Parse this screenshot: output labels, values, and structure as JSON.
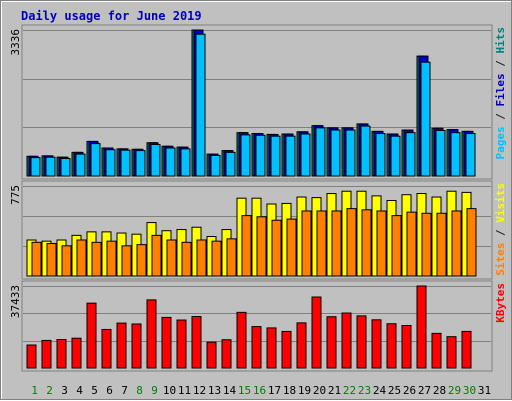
{
  "chart_data": {
    "type": "bar",
    "title": "Daily usage for June 2019",
    "days": [
      "1",
      "2",
      "3",
      "4",
      "5",
      "6",
      "7",
      "8",
      "9",
      "10",
      "11",
      "12",
      "13",
      "14",
      "15",
      "16",
      "17",
      "18",
      "19",
      "20",
      "21",
      "22",
      "23",
      "24",
      "25",
      "26",
      "27",
      "28",
      "29",
      "30",
      "31"
    ],
    "weekend_days": [
      "1",
      "2",
      "8",
      "9",
      "15",
      "16",
      "22",
      "23",
      "29",
      "30"
    ],
    "panels": [
      {
        "id": "hits",
        "ymax_label": "3336",
        "ymax": 3336,
        "right_legend": [
          {
            "text": "Pages",
            "color": "#00c0ff"
          },
          {
            "text": " / ",
            "color": "#202020"
          },
          {
            "text": "Files",
            "color": "#0000c0"
          },
          {
            "text": " / ",
            "color": "#202020"
          },
          {
            "text": "Hits",
            "color": "#008080"
          }
        ],
        "series": [
          {
            "name": "Hits",
            "color": "#008080",
            "values": [
              450,
              460,
              430,
              540,
              790,
              640,
              620,
              610,
              760,
              680,
              660,
              3336,
              500,
              580,
              990,
              970,
              950,
              960,
              1010,
              1150,
              1100,
              1100,
              1190,
              1020,
              960,
              1050,
              2740,
              1090,
              1060,
              1020,
              0
            ]
          },
          {
            "name": "Files",
            "color": "#0000c0",
            "values": [
              450,
              460,
              430,
              540,
              790,
              640,
              620,
              610,
              760,
              680,
              660,
              3336,
              500,
              580,
              990,
              970,
              950,
              960,
              1010,
              1150,
              1100,
              1100,
              1190,
              1020,
              960,
              1050,
              2740,
              1090,
              1060,
              1020,
              0
            ]
          },
          {
            "name": "Pages",
            "color": "#00c0ff",
            "values": [
              420,
              430,
              400,
              500,
              740,
              600,
              590,
              580,
              720,
              640,
              620,
              3240,
              470,
              540,
              940,
              930,
              910,
              910,
              960,
              1100,
              1050,
              1050,
              1140,
              970,
              910,
              990,
              2600,
              1040,
              990,
              970,
              0
            ]
          }
        ]
      },
      {
        "id": "visits",
        "ymax_label": "775",
        "ymax": 775,
        "right_legend": [
          {
            "text": "Sites",
            "color": "#ff8000"
          },
          {
            "text": " / ",
            "color": "#202020"
          },
          {
            "text": "Visits",
            "color": "#ffff00"
          }
        ],
        "series": [
          {
            "name": "Visits",
            "color": "#ffff00",
            "values": [
              310,
              300,
              310,
              350,
              380,
              380,
              370,
              360,
              460,
              390,
              400,
              420,
              340,
              400,
              670,
              670,
              620,
              625,
              680,
              675,
              710,
              730,
              730,
              690,
              650,
              700,
              710,
              680,
              730,
              720,
              0
            ]
          },
          {
            "name": "Sites",
            "color": "#ff8000",
            "values": [
              290,
              280,
              260,
              310,
              290,
              300,
              260,
              270,
              350,
              310,
              290,
              310,
              300,
              320,
              520,
              510,
              480,
              490,
              560,
              560,
              560,
              580,
              570,
              560,
              520,
              550,
              540,
              540,
              560,
              580,
              0
            ]
          }
        ]
      },
      {
        "id": "kbytes",
        "ymax_label": "37433",
        "ymax": 37433,
        "right_legend": [
          {
            "text": "KBytes",
            "color": "#ff0000"
          }
        ],
        "series": [
          {
            "name": "KBytes",
            "color": "#ff0000",
            "values": [
              10500,
              12600,
              13000,
              13600,
              29600,
              17600,
              20500,
              20100,
              31100,
              23100,
              21900,
              23500,
              11800,
              12900,
              25400,
              18900,
              18300,
              16700,
              20600,
              32400,
              23400,
              25100,
              23800,
              22000,
              20200,
              19400,
              37433,
              15800,
              14300,
              16700,
              0
            ]
          }
        ]
      }
    ]
  }
}
